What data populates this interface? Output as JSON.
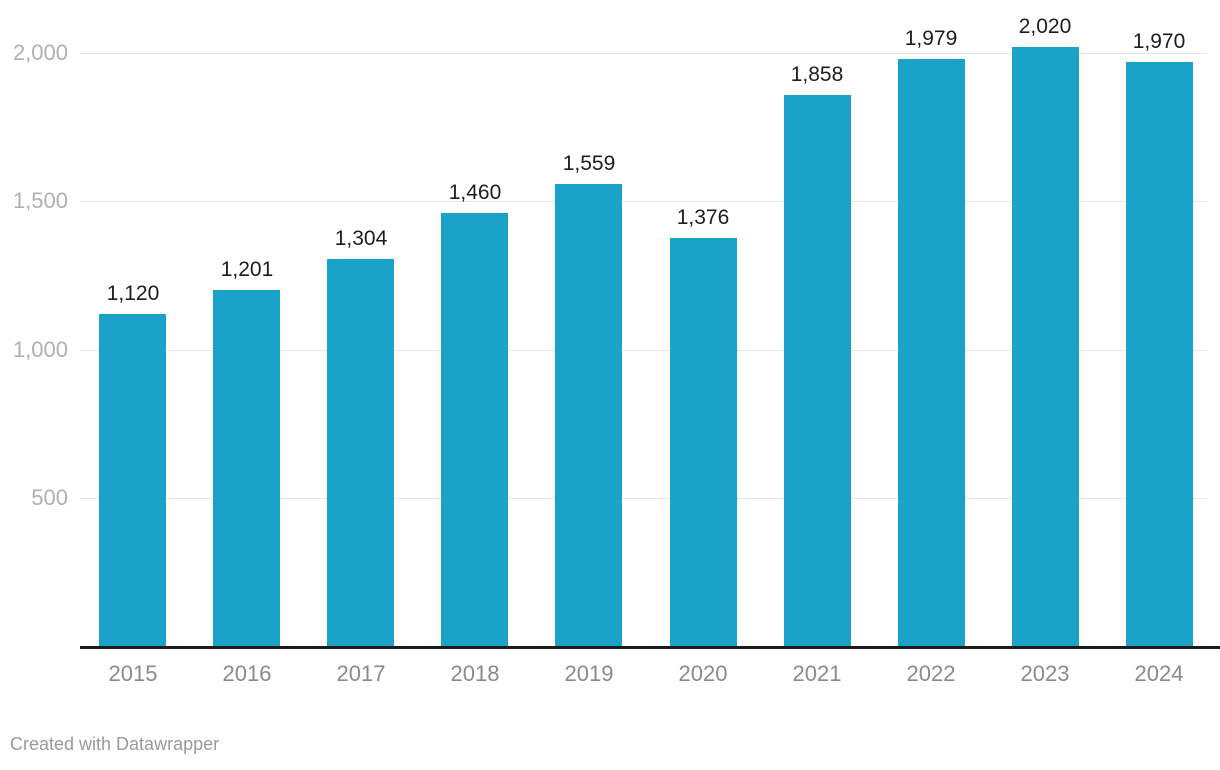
{
  "chart_data": {
    "type": "bar",
    "title": "",
    "xlabel": "",
    "ylabel": "",
    "categories": [
      "2015",
      "2016",
      "2017",
      "2018",
      "2019",
      "2020",
      "2021",
      "2022",
      "2023",
      "2024"
    ],
    "values": [
      1120,
      1201,
      1304,
      1460,
      1559,
      1376,
      1858,
      1979,
      2020,
      1970
    ],
    "value_labels": [
      "1,120",
      "1,201",
      "1,304",
      "1,460",
      "1,559",
      "1,376",
      "1,858",
      "1,979",
      "2,020",
      "1,970"
    ],
    "yticks": [
      {
        "value": 500,
        "label": "500"
      },
      {
        "value": 1000,
        "label": "1,000"
      },
      {
        "value": 1500,
        "label": "1,500"
      },
      {
        "value": 2000,
        "label": "2,000"
      }
    ],
    "ylim": [
      0,
      2000
    ],
    "grid": "on",
    "legend": "none"
  },
  "footer": {
    "attribution": "Created with Datawrapper"
  },
  "colors": {
    "bar": "#1ba2c9",
    "grid": "#e6e6e6",
    "axis_line": "#1a1a1a",
    "ytick_label": "#b0b0b0",
    "category_label": "#8a8a8a",
    "value_label": "#1d1d1d",
    "attribution": "#9a9a9a",
    "background": "#ffffff"
  }
}
